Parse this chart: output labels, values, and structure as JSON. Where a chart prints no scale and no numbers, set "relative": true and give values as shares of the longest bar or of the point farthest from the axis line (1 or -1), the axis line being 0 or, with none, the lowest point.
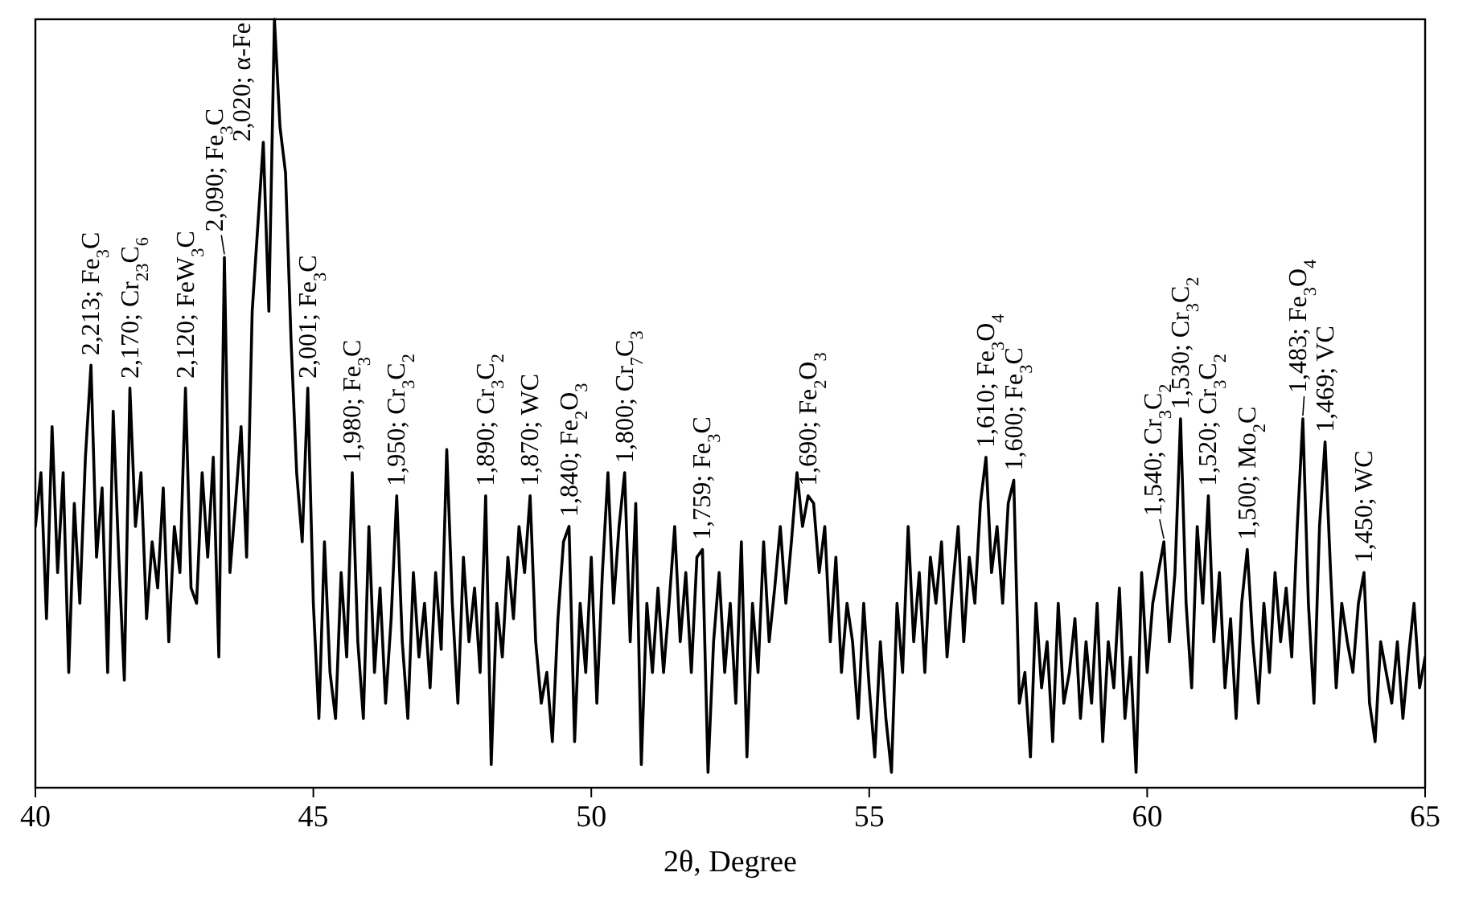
{
  "chart_data": {
    "type": "line",
    "xlabel": "2θ, Degree",
    "relative": true,
    "color": "#000000",
    "xlim": [
      40,
      65
    ],
    "xticks": [
      40,
      45,
      50,
      55,
      60,
      65
    ],
    "x": [
      40.0,
      40.1,
      40.2,
      40.3,
      40.4,
      40.5,
      40.6,
      40.7,
      40.8,
      40.9,
      41.0,
      41.1,
      41.2,
      41.3,
      41.4,
      41.5,
      41.6,
      41.7,
      41.8,
      41.9,
      42.0,
      42.1,
      42.2,
      42.3,
      42.4,
      42.5,
      42.6,
      42.7,
      42.8,
      42.9,
      43.0,
      43.1,
      43.2,
      43.3,
      43.4,
      43.5,
      43.6,
      43.7,
      43.8,
      43.9,
      44.0,
      44.1,
      44.2,
      44.3,
      44.4,
      44.5,
      44.6,
      44.7,
      44.8,
      44.9,
      45.0,
      45.1,
      45.2,
      45.3,
      45.4,
      45.5,
      45.6,
      45.7,
      45.8,
      45.9,
      46.0,
      46.1,
      46.2,
      46.3,
      46.4,
      46.5,
      46.6,
      46.7,
      46.8,
      46.9,
      47.0,
      47.1,
      47.2,
      47.3,
      47.4,
      47.5,
      47.6,
      47.7,
      47.8,
      47.9,
      48.0,
      48.1,
      48.2,
      48.3,
      48.4,
      48.5,
      48.6,
      48.7,
      48.8,
      48.9,
      49.0,
      49.1,
      49.2,
      49.3,
      49.4,
      49.5,
      49.6,
      49.7,
      49.8,
      49.9,
      50.0,
      50.1,
      50.2,
      50.3,
      50.4,
      50.5,
      50.6,
      50.7,
      50.8,
      50.9,
      51.0,
      51.1,
      51.2,
      51.3,
      51.4,
      51.5,
      51.6,
      51.7,
      51.8,
      51.9,
      52.0,
      52.1,
      52.2,
      52.3,
      52.4,
      52.5,
      52.6,
      52.7,
      52.8,
      52.9,
      53.0,
      53.1,
      53.2,
      53.3,
      53.4,
      53.5,
      53.6,
      53.7,
      53.8,
      53.9,
      54.0,
      54.1,
      54.2,
      54.3,
      54.4,
      54.5,
      54.6,
      54.7,
      54.8,
      54.9,
      55.0,
      55.1,
      55.2,
      55.3,
      55.4,
      55.5,
      55.6,
      55.7,
      55.8,
      55.9,
      56.0,
      56.1,
      56.2,
      56.3,
      56.4,
      56.5,
      56.6,
      56.7,
      56.8,
      56.9,
      57.0,
      57.1,
      57.2,
      57.3,
      57.4,
      57.5,
      57.6,
      57.7,
      57.8,
      57.9,
      58.0,
      58.1,
      58.2,
      58.3,
      58.4,
      58.5,
      58.6,
      58.7,
      58.8,
      58.9,
      59.0,
      59.1,
      59.2,
      59.3,
      59.4,
      59.5,
      59.6,
      59.7,
      59.8,
      59.9,
      60.0,
      60.1,
      60.2,
      60.3,
      60.4,
      60.5,
      60.6,
      60.7,
      60.8,
      60.9,
      61.0,
      61.1,
      61.2,
      61.3,
      61.4,
      61.5,
      61.6,
      61.7,
      61.8,
      61.9,
      62.0,
      62.1,
      62.2,
      62.3,
      62.4,
      62.5,
      62.6,
      62.7,
      62.8,
      62.9,
      63.0,
      63.1,
      63.2,
      63.3,
      63.4,
      63.5,
      63.6,
      63.7,
      63.8,
      63.9,
      64.0,
      64.1,
      64.2,
      64.3,
      64.4,
      64.5,
      64.6,
      64.7,
      64.8,
      64.9,
      65.0
    ],
    "values": [
      0.34,
      0.41,
      0.22,
      0.47,
      0.28,
      0.41,
      0.15,
      0.37,
      0.24,
      0.43,
      0.55,
      0.3,
      0.39,
      0.15,
      0.49,
      0.3,
      0.14,
      0.52,
      0.34,
      0.41,
      0.22,
      0.32,
      0.26,
      0.39,
      0.19,
      0.34,
      0.28,
      0.52,
      0.26,
      0.24,
      0.41,
      0.3,
      0.43,
      0.17,
      0.69,
      0.28,
      0.37,
      0.47,
      0.3,
      0.62,
      0.73,
      0.84,
      0.62,
      1,
      0.86,
      0.8,
      0.58,
      0.41,
      0.32,
      0.52,
      0.24,
      0.09,
      0.32,
      0.15,
      0.09,
      0.28,
      0.17,
      0.41,
      0.19,
      0.09,
      0.34,
      0.15,
      0.26,
      0.11,
      0.22,
      0.38,
      0.19,
      0.09,
      0.28,
      0.17,
      0.24,
      0.13,
      0.28,
      0.18,
      0.44,
      0.24,
      0.11,
      0.3,
      0.19,
      0.26,
      0.15,
      0.38,
      0.03,
      0.24,
      0.17,
      0.3,
      0.22,
      0.34,
      0.28,
      0.38,
      0.19,
      0.11,
      0.15,
      0.06,
      0.22,
      0.32,
      0.34,
      0.06,
      0.24,
      0.15,
      0.3,
      0.11,
      0.28,
      0.41,
      0.24,
      0.34,
      0.41,
      0.19,
      0.37,
      0.03,
      0.24,
      0.15,
      0.26,
      0.15,
      0.24,
      0.34,
      0.19,
      0.28,
      0.15,
      0.3,
      0.31,
      0.02,
      0.19,
      0.28,
      0.15,
      0.24,
      0.11,
      0.32,
      0.04,
      0.24,
      0.15,
      0.32,
      0.19,
      0.26,
      0.34,
      0.24,
      0.32,
      0.41,
      0.34,
      0.38,
      0.37,
      0.28,
      0.34,
      0.19,
      0.3,
      0.15,
      0.24,
      0.19,
      0.09,
      0.24,
      0.13,
      0.04,
      0.19,
      0.09,
      0.02,
      0.24,
      0.15,
      0.34,
      0.19,
      0.28,
      0.15,
      0.3,
      0.24,
      0.32,
      0.17,
      0.26,
      0.34,
      0.19,
      0.3,
      0.24,
      0.37,
      0.43,
      0.28,
      0.34,
      0.24,
      0.37,
      0.4,
      0.11,
      0.15,
      0.04,
      0.24,
      0.13,
      0.19,
      0.06,
      0.24,
      0.11,
      0.15,
      0.22,
      0.09,
      0.19,
      0.11,
      0.24,
      0.06,
      0.19,
      0.13,
      0.26,
      0.09,
      0.17,
      0.02,
      0.28,
      0.15,
      0.24,
      0.28,
      0.32,
      0.19,
      0.28,
      0.48,
      0.24,
      0.13,
      0.34,
      0.24,
      0.38,
      0.19,
      0.28,
      0.13,
      0.22,
      0.09,
      0.24,
      0.31,
      0.19,
      0.11,
      0.24,
      0.15,
      0.28,
      0.19,
      0.26,
      0.17,
      0.34,
      0.48,
      0.24,
      0.11,
      0.34,
      0.45,
      0.28,
      0.13,
      0.24,
      0.19,
      0.15,
      0.24,
      0.28,
      0.11,
      0.06,
      0.19,
      0.15,
      0.11,
      0.19,
      0.09,
      0.17,
      0.24,
      0.13,
      0.17
    ],
    "annotations": [
      {
        "text": "2,213; Fe$_{3}$C",
        "x": 41.0,
        "y": 0.55
      },
      {
        "text": "2,170; Cr$_{23}$C$_{6}$",
        "x": 41.7,
        "y": 0.52
      },
      {
        "text": "2,120; FeW$_{3}$C",
        "x": 42.7,
        "y": 0.52
      },
      {
        "text": "2,090; Fe$_{3}$C",
        "x": 43.4,
        "y": 0.69
      },
      {
        "text": "2,020; α-Fe",
        "x": 44.3,
        "y": 1
      },
      {
        "text": "2,001; Fe$_{3}$C",
        "x": 44.9,
        "y": 0.52
      },
      {
        "text": "1,980; Fe$_{3}$C",
        "x": 45.7,
        "y": 0.41
      },
      {
        "text": "1,950; Cr$_{3}$C$_{2}$",
        "x": 46.5,
        "y": 0.38
      },
      {
        "text": "1,890; Cr$_{3}$C$_{2}$",
        "x": 48.1,
        "y": 0.38
      },
      {
        "text": "1,870; WC",
        "x": 48.9,
        "y": 0.38
      },
      {
        "text": "1,840; Fe$_{2}$O$_{3}$",
        "x": 49.6,
        "y": 0.34
      },
      {
        "text": "1,800; Cr$_{7}$C$_{3}$",
        "x": 50.6,
        "y": 0.41
      },
      {
        "text": "1,759; Fe$_{3}$C",
        "x": 52.0,
        "y": 0.31
      },
      {
        "text": "1,690; Fe$_{2}$O$_{3}$",
        "x": 53.9,
        "y": 0.38
      },
      {
        "text": "1,610; Fe$_{3}$O$_{4}$",
        "x": 57.1,
        "y": 0.43
      },
      {
        "text": "1,600; Fe$_{3}$C",
        "x": 57.6,
        "y": 0.4
      },
      {
        "text": "1,540; Cr$_{3}$C$_{2}$",
        "x": 60.3,
        "y": 0.32
      },
      {
        "text": "1,530; Cr$_{3}$C$_{2}$",
        "x": 60.6,
        "y": 0.48
      },
      {
        "text": "1,520; Cr$_{3}$C$_{2}$",
        "x": 61.1,
        "y": 0.38
      },
      {
        "text": "1,500; Mo$_{2}$C",
        "x": 61.8,
        "y": 0.31
      },
      {
        "text": "1,483; Fe$_{3}$O$_{4}$",
        "x": 62.8,
        "y": 0.48
      },
      {
        "text": "1,469; VC",
        "x": 63.2,
        "y": 0.45
      },
      {
        "text": "1,450; WC",
        "x": 63.9,
        "y": 0.28
      }
    ]
  }
}
